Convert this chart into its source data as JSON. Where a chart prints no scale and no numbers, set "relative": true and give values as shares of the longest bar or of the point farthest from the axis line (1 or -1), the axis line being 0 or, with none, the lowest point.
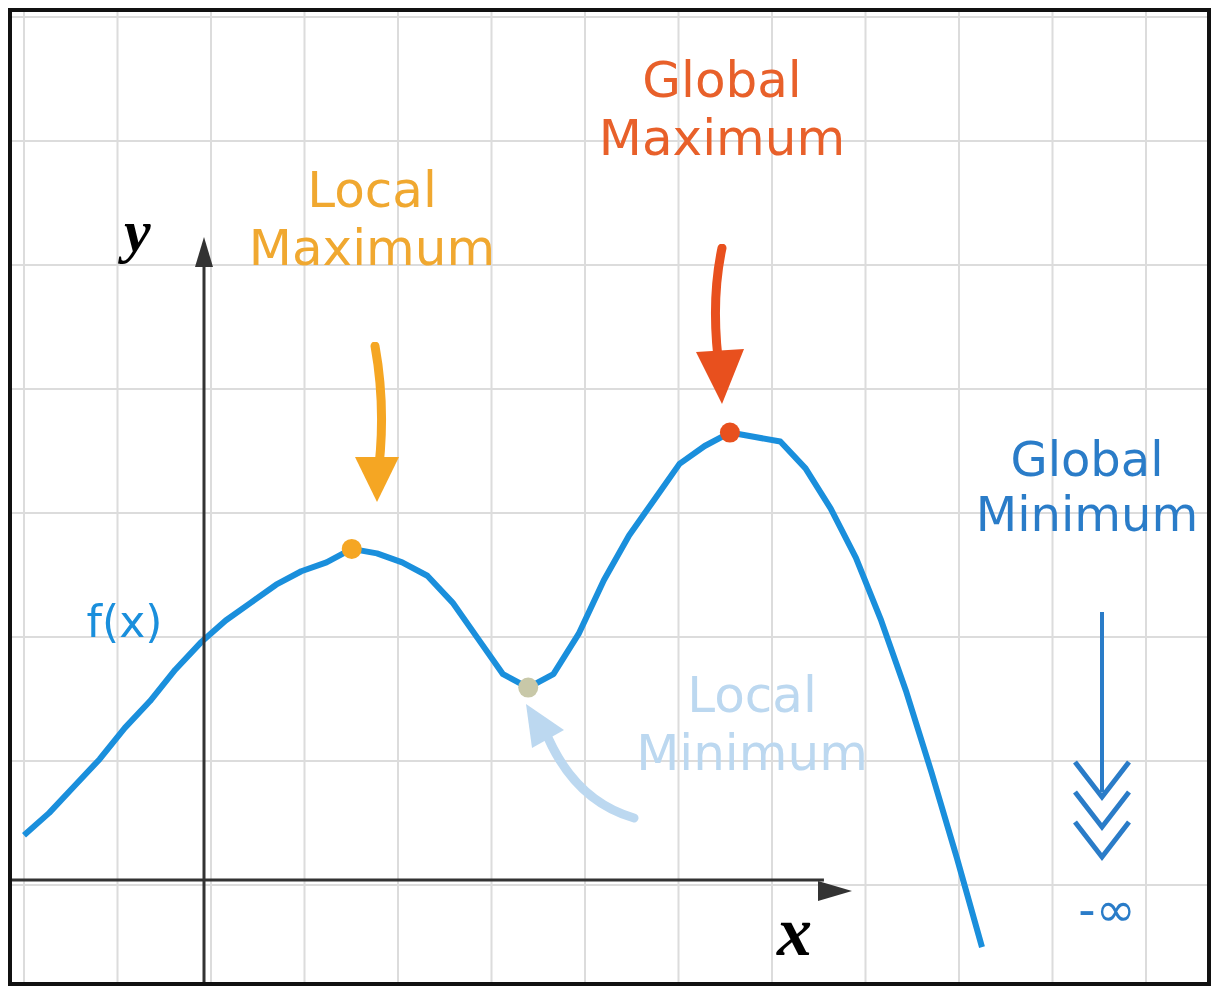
{
  "chart_data": {
    "type": "line",
    "relative": true,
    "xlabel": "x",
    "ylabel": "y",
    "grid": true,
    "legend": false,
    "categories": [
      null,
      null,
      null,
      null,
      null,
      null,
      null,
      null,
      null,
      null,
      null,
      null,
      null,
      null,
      null,
      null,
      null,
      null,
      null,
      null,
      null,
      null,
      null,
      null,
      null,
      null,
      null,
      null,
      null,
      null,
      null,
      null,
      null,
      null,
      null,
      null,
      null,
      null,
      null
    ],
    "series": [
      {
        "color": "#1a8fdc",
        "values": [
          0.1,
          0.15,
          0.21,
          0.27,
          0.34,
          0.4,
          0.47,
          0.53,
          0.58,
          0.62,
          0.66,
          0.69,
          0.71,
          0.74,
          0.73,
          0.71,
          0.68,
          0.62,
          0.54,
          0.46,
          0.43,
          0.46,
          0.55,
          0.67,
          0.77,
          0.85,
          0.93,
          0.97,
          1,
          0.99,
          0.98,
          0.92,
          0.83,
          0.72,
          0.58,
          0.42,
          0.24,
          0.05,
          -0.15
        ],
        "colors": [
          null,
          null,
          null,
          null,
          null,
          null,
          null,
          null,
          null,
          null,
          null,
          null,
          null,
          "#f5a623",
          null,
          null,
          null,
          null,
          null,
          null,
          "#c8c8a8",
          null,
          null,
          null,
          null,
          null,
          null,
          null,
          "#e8501e",
          null,
          null,
          null,
          null,
          null,
          null,
          null,
          null,
          null,
          null
        ]
      }
    ],
    "annotations": [
      "Local Maximum",
      "Global Maximum",
      "Local Minimum",
      "Global Minimum",
      "-∞",
      "f(x)"
    ]
  }
}
